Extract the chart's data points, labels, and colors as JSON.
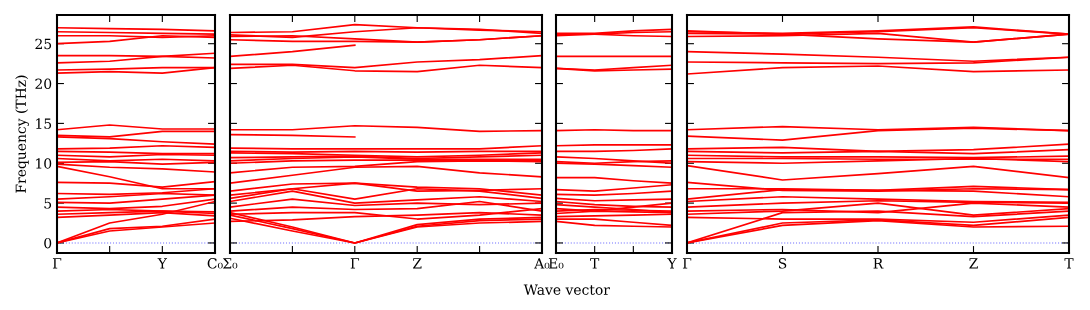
{
  "chart_data": [
    {
      "type": "line",
      "ylabel": "Frequency (THz)",
      "ylim": [
        -1.26,
        28.6
      ],
      "categories": [
        "Γ",
        null,
        "Y",
        "C₀"
      ],
      "yticks": [
        0,
        5,
        10,
        15,
        20,
        25
      ],
      "ref_lines": [
        {
          "axis": "y",
          "value": 0,
          "label": null,
          "color": "#7070ff",
          "line_style": "dotted"
        }
      ],
      "series": [
        {
          "color": "#ff0000",
          "values": [
            0,
            1.5,
            2.0,
            2.5
          ]
        },
        {
          "color": "#ff0000",
          "values": [
            0,
            1.8,
            2.1,
            3.0
          ]
        },
        {
          "color": "#ff0000",
          "values": [
            0,
            2.5,
            3.6,
            5.2
          ]
        },
        {
          "color": "#ff0000",
          "values": [
            3.2,
            3.5,
            3.8,
            3.4
          ]
        },
        {
          "color": "#ff0000",
          "values": [
            3.6,
            3.8,
            4.0,
            3.7
          ]
        },
        {
          "color": "#ff0000",
          "values": [
            4.0,
            4.2,
            4.0,
            3.9
          ]
        },
        {
          "color": "#ff0000",
          "values": [
            4.5,
            4.3,
            4.6,
            5.5
          ]
        },
        {
          "color": "#ff0000",
          "values": [
            5.1,
            5.0,
            5.5,
            6.0
          ]
        },
        {
          "color": "#ff0000",
          "values": [
            5.5,
            5.8,
            6.2,
            6.0
          ]
        },
        {
          "color": "#ff0000",
          "values": [
            6.2,
            6.1,
            6.3,
            6.8
          ]
        },
        {
          "color": "#ff0000",
          "values": [
            7.6,
            7.5,
            7.0,
            7.7
          ]
        },
        {
          "color": "#ff0000",
          "values": [
            9.6,
            8.3,
            6.8,
            6.8
          ]
        },
        {
          "color": "#ff0000",
          "values": [
            9.9,
            9.5,
            9.3,
            8.9
          ]
        },
        {
          "color": "#ff0000",
          "values": [
            10.1,
            10.2,
            9.9,
            10.1
          ]
        },
        {
          "color": "#ff0000",
          "values": [
            10.6,
            10.3,
            10.5,
            10.3
          ]
        },
        {
          "color": "#ff0000",
          "values": [
            11.0,
            10.8,
            11.1,
            11.0
          ]
        },
        {
          "color": "#ff0000",
          "values": [
            11.5,
            11.4,
            11.2,
            11.2
          ]
        },
        {
          "color": "#ff0000",
          "values": [
            11.8,
            11.9,
            12.2,
            12.0
          ]
        },
        {
          "color": "#ff0000",
          "values": [
            13.3,
            13.1,
            12.7,
            12.4
          ]
        },
        {
          "color": "#ff0000",
          "values": [
            13.5,
            13.3,
            14.0,
            14.0
          ]
        },
        {
          "color": "#ff0000",
          "values": [
            14.2,
            14.8,
            14.3,
            14.3
          ]
        },
        {
          "color": "#ff0000",
          "values": [
            21.3,
            21.5,
            21.3,
            22.0
          ]
        },
        {
          "color": "#ff0000",
          "values": [
            21.7,
            21.8,
            22.0,
            22.0
          ]
        },
        {
          "color": "#ff0000",
          "values": [
            22.6,
            22.8,
            23.4,
            23.8
          ]
        },
        {
          "color": "#ff0000",
          "values": [
            23.5,
            23.5,
            23.4,
            23.2
          ]
        },
        {
          "color": "#ff0000",
          "values": [
            25.0,
            25.3,
            26.0,
            25.8
          ]
        },
        {
          "color": "#ff0000",
          "values": [
            26.0,
            26.0,
            25.8,
            26.0
          ]
        },
        {
          "color": "#ff0000",
          "values": [
            26.5,
            26.4,
            26.3,
            26.2
          ]
        },
        {
          "color": "#ff0000",
          "values": [
            27.0,
            26.9,
            26.8,
            26.6
          ]
        }
      ]
    },
    {
      "type": "line",
      "ylim": [
        -1.26,
        28.6
      ],
      "categories": [
        "Σ₀",
        null,
        "Γ",
        "Z",
        null,
        "A₀"
      ],
      "yticks": [
        0,
        5,
        10,
        15,
        20,
        25
      ],
      "tick_labels": "x",
      "ref_lines": [
        {
          "axis": "y",
          "value": 0,
          "label": null,
          "color": "#7070ff",
          "line_style": "dotted"
        }
      ],
      "series": [
        {
          "color": "#ff0000",
          "values": [
            3.1,
            1.5,
            0,
            2.0,
            2.5,
            2.7
          ]
        },
        {
          "color": "#ff0000",
          "values": [
            3.5,
            1.8,
            0,
            2.1,
            2.8,
            3.0
          ]
        },
        {
          "color": "#ff0000",
          "values": [
            3.8,
            2.0,
            0,
            2.3,
            3.0,
            3.2
          ]
        },
        {
          "color": "#ff0000",
          "values": [
            2.7,
            2.9,
            3.3,
            3.5,
            3.8,
            3.5
          ]
        },
        {
          "color": "#ff0000",
          "values": [
            3.6,
            3.8,
            3.8,
            3.0,
            3.5,
            4.3
          ]
        },
        {
          "color": "#ff0000",
          "values": [
            4.0,
            4.5,
            4.2,
            4.3,
            5.2,
            4.0
          ]
        },
        {
          "color": "#ff0000",
          "values": [
            4.5,
            5.5,
            4.7,
            5.0,
            4.8,
            5.0
          ]
        },
        {
          "color": "#ff0000",
          "values": [
            5.2,
            6.5,
            5.0,
            5.4,
            5.8,
            5.2
          ]
        },
        {
          "color": "#ff0000",
          "values": [
            5.6,
            6.8,
            5.5,
            6.8,
            6.5,
            5.6
          ]
        },
        {
          "color": "#ff0000",
          "values": [
            6.0,
            6.8,
            7.5,
            6.5,
            6.6,
            6.8
          ]
        },
        {
          "color": "#ff0000",
          "values": [
            6.5,
            7.4,
            7.5,
            7.0,
            6.8,
            6.0
          ]
        },
        {
          "color": "#ff0000",
          "values": [
            7.5,
            8.5,
            9.5,
            9.6,
            8.8,
            8.3
          ]
        },
        {
          "color": "#ff0000",
          "values": [
            8.8,
            9.5,
            9.6,
            10.2,
            10.3,
            10.2
          ]
        },
        {
          "color": "#ff0000",
          "values": [
            10.0,
            10.3,
            10.4,
            10.4,
            10.3,
            10.3
          ]
        },
        {
          "color": "#ff0000",
          "values": [
            10.3,
            10.6,
            10.8,
            10.5,
            10.5,
            10.5
          ]
        },
        {
          "color": "#ff0000",
          "values": [
            10.7,
            10.8,
            10.9,
            10.6,
            10.8,
            11.0
          ]
        },
        {
          "color": "#ff0000",
          "values": [
            11.3,
            11.2,
            11.0,
            10.8,
            11.0,
            11.3
          ]
        },
        {
          "color": "#ff0000",
          "values": [
            11.5,
            11.4,
            11.5,
            11.4,
            11.5,
            11.5
          ]
        },
        {
          "color": "#ff0000",
          "values": [
            11.9,
            11.8,
            11.8,
            11.8,
            11.8,
            12.2
          ]
        },
        {
          "color": "#ff0000",
          "values": [
            13.6,
            13.5,
            13.3,
            null,
            null,
            null
          ]
        },
        {
          "color": "#ff0000",
          "values": [
            14.2,
            14.2,
            14.7,
            14.5,
            14.0,
            14.1
          ]
        },
        {
          "color": "#ff0000",
          "values": [
            21.9,
            22.3,
            21.6,
            21.5,
            22.3,
            22.0
          ]
        },
        {
          "color": "#ff0000",
          "values": [
            22.4,
            22.4,
            22.0,
            22.7,
            23.0,
            23.5
          ]
        },
        {
          "color": "#ff0000",
          "values": [
            23.4,
            24.0,
            24.8,
            null,
            null,
            null
          ]
        },
        {
          "color": "#ff0000",
          "values": [
            25.5,
            25.3,
            25.3,
            25.2,
            25.5,
            26.0
          ]
        },
        {
          "color": "#ff0000",
          "values": [
            25.9,
            26.0,
            25.6,
            25.2,
            25.5,
            26.0
          ]
        },
        {
          "color": "#ff0000",
          "values": [
            26.1,
            25.8,
            26.5,
            27.0,
            26.7,
            26.5
          ]
        },
        {
          "color": "#ff0000",
          "values": [
            26.4,
            26.5,
            27.4,
            27.0,
            26.8,
            26.3
          ]
        }
      ]
    },
    {
      "type": "line",
      "xlabel": "Wave vector",
      "ylim": [
        -1.26,
        28.6
      ],
      "categories": [
        "E₀",
        "T",
        null,
        "Y"
      ],
      "yticks": [
        0,
        5,
        10,
        15,
        20,
        25
      ],
      "tick_labels": "x",
      "ref_lines": [
        {
          "axis": "y",
          "value": 0,
          "label": null,
          "color": "#7070ff",
          "line_style": "dotted"
        }
      ],
      "series": [
        {
          "color": "#ff0000",
          "values": [
            2.7,
            2.2,
            2.1,
            2.0
          ]
        },
        {
          "color": "#ff0000",
          "values": [
            3.0,
            3.0,
            2.6,
            2.2
          ]
        },
        {
          "color": "#ff0000",
          "values": [
            3.3,
            3.4,
            3.5,
            3.6
          ]
        },
        {
          "color": "#ff0000",
          "values": [
            3.7,
            4.0,
            3.9,
            3.8
          ]
        },
        {
          "color": "#ff0000",
          "values": [
            4.0,
            4.2,
            4.1,
            4.0
          ]
        },
        {
          "color": "#ff0000",
          "values": [
            4.3,
            4.0,
            4.5,
            5.0
          ]
        },
        {
          "color": "#ff0000",
          "values": [
            4.8,
            4.5,
            4.2,
            3.8
          ]
        },
        {
          "color": "#ff0000",
          "values": [
            5.2,
            4.8,
            4.6,
            4.5
          ]
        },
        {
          "color": "#ff0000",
          "values": [
            5.6,
            5.3,
            5.4,
            5.5
          ]
        },
        {
          "color": "#ff0000",
          "values": [
            6.1,
            6.0,
            6.2,
            6.5
          ]
        },
        {
          "color": "#ff0000",
          "values": [
            6.7,
            6.5,
            6.9,
            7.3
          ]
        },
        {
          "color": "#ff0000",
          "values": [
            8.2,
            8.2,
            7.8,
            7.5
          ]
        },
        {
          "color": "#ff0000",
          "values": [
            10.0,
            9.9,
            9.7,
            9.5
          ]
        },
        {
          "color": "#ff0000",
          "values": [
            10.2,
            10.0,
            10.2,
            10.3
          ]
        },
        {
          "color": "#ff0000",
          "values": [
            10.8,
            10.6,
            10.3,
            10.0
          ]
        },
        {
          "color": "#ff0000",
          "values": [
            11.5,
            11.5,
            11.6,
            11.8
          ]
        },
        {
          "color": "#ff0000",
          "values": [
            12.2,
            12.3,
            12.3,
            12.3
          ]
        },
        {
          "color": "#ff0000",
          "values": [
            14.1,
            14.2,
            14.1,
            14.1
          ]
        },
        {
          "color": "#ff0000",
          "values": [
            21.9,
            21.6,
            21.7,
            21.8
          ]
        },
        {
          "color": "#ff0000",
          "values": [
            21.9,
            21.7,
            22.0,
            22.3
          ]
        },
        {
          "color": "#ff0000",
          "values": [
            23.4,
            23.4,
            23.4,
            23.4
          ]
        },
        {
          "color": "#ff0000",
          "values": [
            26.0,
            26.2,
            26.4,
            26.5
          ]
        },
        {
          "color": "#ff0000",
          "values": [
            26.2,
            26.2,
            26.0,
            25.9
          ]
        },
        {
          "color": "#ff0000",
          "values": [
            26.3,
            26.3,
            26.6,
            26.8
          ]
        }
      ]
    },
    {
      "type": "line",
      "ylim": [
        -1.26,
        28.6
      ],
      "categories": [
        "Γ",
        "S",
        "R",
        "Z",
        "T"
      ],
      "yticks": [
        0,
        5,
        10,
        15,
        20,
        25
      ],
      "tick_labels": "x",
      "ref_lines": [
        {
          "axis": "y",
          "value": 0,
          "label": null,
          "color": "#7070ff",
          "line_style": "dotted"
        }
      ],
      "series": [
        {
          "color": "#ff0000",
          "values": [
            0,
            2.2,
            2.8,
            2.0,
            2.1
          ]
        },
        {
          "color": "#ff0000",
          "values": [
            0,
            2.5,
            2.9,
            2.2,
            3.2
          ]
        },
        {
          "color": "#ff0000",
          "values": [
            0,
            3.8,
            4.0,
            3.3,
            4.0
          ]
        },
        {
          "color": "#ff0000",
          "values": [
            3.2,
            3.0,
            3.0,
            2.6,
            3.5
          ]
        },
        {
          "color": "#ff0000",
          "values": [
            3.6,
            4.0,
            5.0,
            3.5,
            4.3
          ]
        },
        {
          "color": "#ff0000",
          "values": [
            4.0,
            4.2,
            3.8,
            5.0,
            4.5
          ]
        },
        {
          "color": "#ff0000",
          "values": [
            4.5,
            5.0,
            5.3,
            5.1,
            5.0
          ]
        },
        {
          "color": "#ff0000",
          "values": [
            5.2,
            5.8,
            5.5,
            5.2,
            5.1
          ]
        },
        {
          "color": "#ff0000",
          "values": [
            5.5,
            6.7,
            6.6,
            6.5,
            5.8
          ]
        },
        {
          "color": "#ff0000",
          "values": [
            6.8,
            6.8,
            6.6,
            7.1,
            6.7
          ]
        },
        {
          "color": "#ff0000",
          "values": [
            7.6,
            6.6,
            6.5,
            6.8,
            6.7
          ]
        },
        {
          "color": "#ff0000",
          "values": [
            9.7,
            7.9,
            8.7,
            9.6,
            8.2
          ]
        },
        {
          "color": "#ff0000",
          "values": [
            10.2,
            10.0,
            10.3,
            10.6,
            10.2
          ]
        },
        {
          "color": "#ff0000",
          "values": [
            10.6,
            10.6,
            10.5,
            10.5,
            10.5
          ]
        },
        {
          "color": "#ff0000",
          "values": [
            11.0,
            10.8,
            10.8,
            10.7,
            10.9
          ]
        },
        {
          "color": "#ff0000",
          "values": [
            11.5,
            11.3,
            11.5,
            11.2,
            11.7
          ]
        },
        {
          "color": "#ff0000",
          "values": [
            11.8,
            12.0,
            11.5,
            11.7,
            12.4
          ]
        },
        {
          "color": "#ff0000",
          "values": [
            13.4,
            12.9,
            14.1,
            14.4,
            14.1
          ]
        },
        {
          "color": "#ff0000",
          "values": [
            14.2,
            14.6,
            14.2,
            14.5,
            14.1
          ]
        },
        {
          "color": "#ff0000",
          "values": [
            21.2,
            22.0,
            22.2,
            21.5,
            21.7
          ]
        },
        {
          "color": "#ff0000",
          "values": [
            22.7,
            22.6,
            22.5,
            22.6,
            23.3
          ]
        },
        {
          "color": "#ff0000",
          "values": [
            24.0,
            23.7,
            23.3,
            22.8,
            23.3
          ]
        },
        {
          "color": "#ff0000",
          "values": [
            25.9,
            26.0,
            26.3,
            25.2,
            26.2
          ]
        },
        {
          "color": "#ff0000",
          "values": [
            26.3,
            26.2,
            25.6,
            25.2,
            26.2
          ]
        },
        {
          "color": "#ff0000",
          "values": [
            26.5,
            26.3,
            26.6,
            27.1,
            26.2
          ]
        },
        {
          "color": "#ff0000",
          "values": [
            26.6,
            26.2,
            26.5,
            27.0,
            26.2
          ]
        }
      ]
    }
  ]
}
